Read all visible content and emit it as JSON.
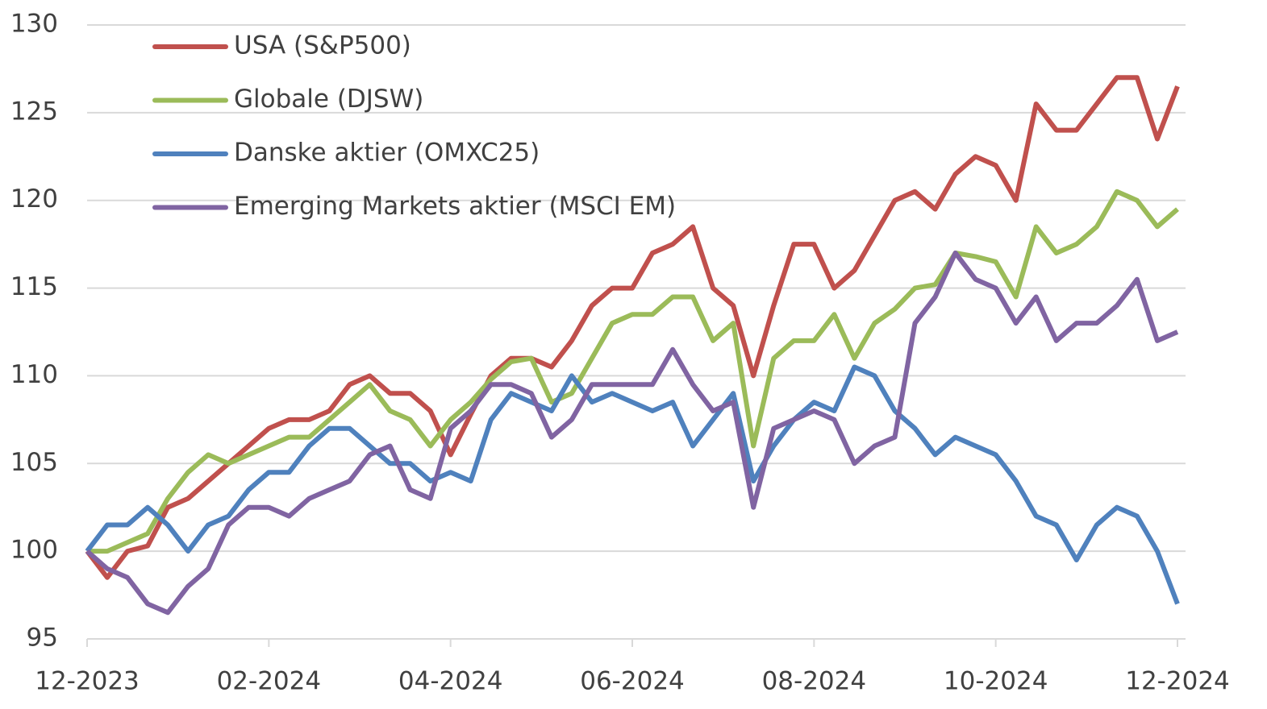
{
  "chart_data": {
    "type": "line",
    "categories": [
      "12-2023",
      null,
      null,
      null,
      null,
      null,
      null,
      null,
      null,
      "02-2024",
      null,
      null,
      null,
      null,
      null,
      null,
      null,
      null,
      "04-2024",
      null,
      null,
      null,
      null,
      null,
      null,
      null,
      null,
      "06-2024",
      null,
      null,
      null,
      null,
      null,
      null,
      null,
      null,
      "08-2024",
      null,
      null,
      null,
      null,
      null,
      null,
      null,
      null,
      "10-2024",
      null,
      null,
      null,
      null,
      null,
      null,
      null,
      null,
      "12-2024"
    ],
    "series": [
      {
        "name": "USA (S&P500)",
        "color": "#c0504d",
        "values": [
          100,
          98.5,
          100,
          100.3,
          102.5,
          103,
          104,
          105,
          106,
          107,
          107.5,
          107.5,
          108,
          109.5,
          110,
          109,
          109,
          108,
          105.5,
          107.8,
          110,
          111,
          111,
          110.5,
          112,
          114,
          115,
          115,
          117,
          117.5,
          118.5,
          115,
          114,
          110,
          114,
          117.5,
          117.5,
          115,
          116,
          118,
          120,
          120.5,
          119.5,
          121.5,
          122.5,
          122,
          120,
          125.5,
          124,
          124,
          125.5,
          127,
          127,
          123.5,
          126.5
        ]
      },
      {
        "name": "Globale (DJSW)",
        "color": "#9bbb59",
        "values": [
          100,
          100,
          100.5,
          101,
          103,
          104.5,
          105.5,
          105,
          105.5,
          106,
          106.5,
          106.5,
          107.5,
          108.5,
          109.5,
          108,
          107.5,
          106,
          107.5,
          108.5,
          109.8,
          110.8,
          111,
          108.5,
          109,
          111,
          113,
          113.5,
          113.5,
          114.5,
          114.5,
          112,
          113,
          106,
          111,
          112,
          112,
          113.5,
          111,
          113,
          113.8,
          115,
          115.2,
          117,
          116.8,
          116.5,
          114.5,
          118.5,
          117,
          117.5,
          118.5,
          120.5,
          120,
          118.5,
          119.5
        ]
      },
      {
        "name": "Danske aktier (OMXC25)",
        "color": "#4f81bd",
        "values": [
          100,
          101.5,
          101.5,
          102.5,
          101.5,
          100,
          101.5,
          102,
          103.5,
          104.5,
          104.5,
          106,
          107,
          107,
          106,
          105,
          105,
          104,
          104.5,
          104,
          107.5,
          109,
          108.5,
          108,
          110,
          108.5,
          109,
          108.5,
          108,
          108.5,
          106,
          107.5,
          109,
          104,
          106,
          107.5,
          108.5,
          108,
          110.5,
          110,
          108,
          107,
          105.5,
          106.5,
          106,
          105.5,
          104,
          102,
          101.5,
          99.5,
          101.5,
          102.5,
          102,
          100,
          97
        ]
      },
      {
        "name": "Emerging Markets aktier (MSCI EM)",
        "color": "#8064a2",
        "values": [
          100,
          99,
          98.5,
          97,
          96.5,
          98,
          99,
          101.5,
          102.5,
          102.5,
          102,
          103,
          103.5,
          104,
          105.5,
          106,
          103.5,
          103,
          107,
          108,
          109.5,
          109.5,
          109,
          106.5,
          107.5,
          109.5,
          109.5,
          109.5,
          109.5,
          111.5,
          109.5,
          108,
          108.5,
          102.5,
          107,
          107.5,
          108,
          107.5,
          105,
          106,
          106.5,
          113,
          114.5,
          117,
          115.5,
          115,
          113,
          114.5,
          112,
          113,
          113,
          114,
          115.5,
          112,
          112.5
        ]
      }
    ],
    "ylim": [
      95,
      130
    ],
    "yticks": [
      95,
      100,
      105,
      110,
      115,
      120,
      125,
      130
    ],
    "grid": true,
    "legend": "upper-left"
  }
}
